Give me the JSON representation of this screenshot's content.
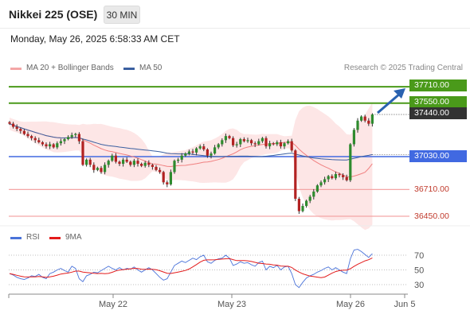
{
  "header": {
    "title": "Nikkei 225 (OSE)",
    "timeframe": "30 MIN",
    "timestamp": "Monday, May 26, 2025 6:58:33 AM CET"
  },
  "legend": {
    "ma20_label": "MA 20 + Bollinger Bands",
    "ma50_label": "MA 50",
    "credit": "Research © 2025 Trading Central",
    "rsi_label": "RSI",
    "ma9_label": "9MA"
  },
  "colors": {
    "resistance": "#4a9a1a",
    "pivot": "#4169e1",
    "support": "#f4a6a6",
    "bollinger_fill": "#fde2e2",
    "ma20": "#f08080",
    "ma50": "#3a5fa0",
    "candle_up": "#2e8b2e",
    "candle_down": "#b22222",
    "last_price": "#333333",
    "rsi": "#4a73d9",
    "rsi_ma": "#e31b1b",
    "arrow": "#2a62b0"
  },
  "chart_data": {
    "type": "candlestick",
    "price_levels": {
      "resistance": [
        37710.0,
        37550.0
      ],
      "last_price": 37440.0,
      "pivot": 37030.0,
      "support": [
        36710.0,
        36450.0
      ]
    },
    "price_labels": [
      "37710.00",
      "37550.00",
      "37440.00",
      "37030.00",
      "36710.00",
      "36450.00"
    ],
    "x_tick_labels": [
      "May 22",
      "May 23",
      "May 26",
      "Jun 5"
    ],
    "rsi_tick_labels": [
      "70",
      "50",
      "30"
    ],
    "rsi_levels": [
      70,
      50,
      30
    ],
    "close_series": [
      37350,
      37320,
      37300,
      37280,
      37250,
      37230,
      37210,
      37190,
      37170,
      37150,
      37130,
      37150,
      37120,
      37160,
      37180,
      37200,
      37220,
      37240,
      37250,
      37180,
      36950,
      37000,
      36950,
      36900,
      36920,
      36880,
      36950,
      36990,
      37040,
      36980,
      36960,
      37000,
      36980,
      36950,
      36990,
      36960,
      36940,
      36970,
      36950,
      36930,
      36900,
      36880,
      36780,
      36760,
      36880,
      36990,
      37000,
      37040,
      37060,
      37080,
      37070,
      37110,
      37130,
      37100,
      37040,
      37060,
      37120,
      37150,
      37190,
      37230,
      37210,
      37140,
      37150,
      37200,
      37180,
      37190,
      37160,
      37150,
      37180,
      37210,
      37130,
      37160,
      37150,
      37170,
      37130,
      37160,
      37180,
      37090,
      36620,
      36500,
      36550,
      36600,
      36640,
      36690,
      36750,
      36780,
      36810,
      36840,
      36820,
      36860,
      36850,
      36830,
      36800,
      37150,
      37290,
      37380,
      37420,
      37380,
      37350,
      37440
    ],
    "rsi": [
      45,
      43,
      40,
      38,
      37,
      39,
      42,
      41,
      44,
      40,
      38,
      45,
      47,
      50,
      52,
      49,
      47,
      55,
      52,
      38,
      34,
      42,
      44,
      47,
      46,
      49,
      52,
      55,
      52,
      50,
      53,
      50,
      52,
      51,
      54,
      50,
      47,
      50,
      53,
      50,
      45,
      40,
      36,
      38,
      47,
      56,
      59,
      62,
      60,
      63,
      66,
      64,
      68,
      70,
      61,
      59,
      63,
      65,
      66,
      70,
      66,
      56,
      58,
      61,
      59,
      60,
      57,
      55,
      60,
      62,
      50,
      55,
      53,
      56,
      50,
      54,
      55,
      45,
      30,
      26,
      33,
      39,
      42,
      44,
      47,
      49,
      52,
      54,
      50,
      53,
      50,
      47,
      45,
      65,
      77,
      78,
      75,
      71,
      67,
      72
    ]
  }
}
